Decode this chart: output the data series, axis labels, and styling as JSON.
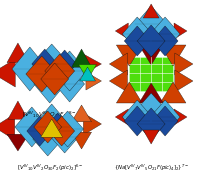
{
  "bg_color": "#ffffff",
  "colors": {
    "blue_dark": "#1a4a9c",
    "blue_light": "#4ab0e0",
    "blue_mid": "#2060b0",
    "orange": "#d04000",
    "orange_lt": "#e06020",
    "red": "#cc1500",
    "red_dark": "#8b0000",
    "green_dark": "#0a5a0a",
    "green_bright": "#44dd00",
    "yellow": "#e0c000",
    "cyan": "#00c0c0"
  },
  "label_tl_fs": 4.2,
  "label_bl_fs": 4.0,
  "label_br_fs": 3.8
}
